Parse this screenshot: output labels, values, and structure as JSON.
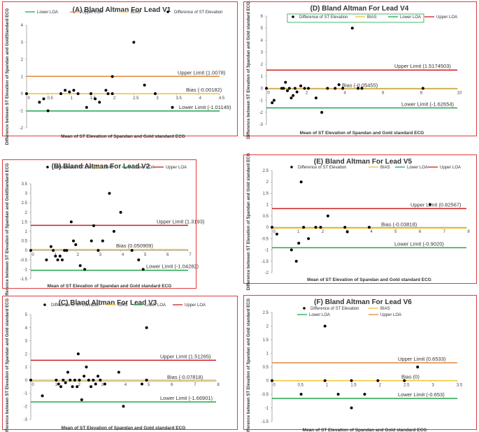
{
  "chart_data": [
    {
      "id": "v1",
      "type": "scatter",
      "title": "(A) Bland Altman For Lead V1",
      "xlabel": "Mean of ST Elevation of Spandan and Gold standard ECG",
      "ylabel": "Difference between ST Elevation of Spandan and GoldStandard ECG",
      "xlim": [
        0,
        4.5
      ],
      "xticks": [
        0,
        0.5,
        1,
        1.5,
        2,
        2.5,
        3,
        3.5,
        4,
        4.5
      ],
      "ylim": [
        -2,
        4
      ],
      "yticks": [
        -2,
        -1,
        0,
        1,
        2,
        3,
        4
      ],
      "legend": [
        {
          "label": "Lower LOA",
          "color": "#1fa64a",
          "kind": "line"
        },
        {
          "label": "Upper LOA",
          "color": "#e1883a",
          "kind": "line"
        },
        {
          "label": "BIAS",
          "color": "#f2c230",
          "kind": "line"
        },
        {
          "label": "Difference of ST Elevation",
          "color": "#000000",
          "kind": "dot"
        }
      ],
      "lines": [
        {
          "name": "Upper Limit",
          "value": 1.0078,
          "color": "#e1883a",
          "label": "Upper Limit (1.0078)"
        },
        {
          "name": "Bias",
          "value": -0.00182,
          "color": "#f2c230",
          "label": "Bias (-0.00182)"
        },
        {
          "name": "Lower Limit",
          "value": -1.01149,
          "color": "#1fa64a",
          "label": "Lower Limit (-1.01149)"
        }
      ],
      "points": {
        "x": [
          0,
          0.3,
          0.4,
          0.5,
          0.8,
          0.9,
          1.0,
          1.1,
          1.2,
          1.4,
          1.5,
          1.6,
          1.7,
          1.85,
          1.9,
          2.0,
          2.0,
          2.5,
          2.75,
          3.0,
          3.4
        ],
        "y": [
          0,
          -0.5,
          -0.3,
          -1.0,
          0,
          0.2,
          0.1,
          0.2,
          0,
          -0.8,
          0,
          -0.3,
          -0.5,
          0.2,
          0,
          0,
          1.0,
          3.0,
          0.5,
          0,
          -0.8
        ]
      }
    },
    {
      "id": "v4",
      "type": "scatter",
      "title": "(D) Bland Altman For Lead V4",
      "xlabel": "Mean of ST Elevation of Spandan and Gold standard ECG",
      "ylabel": "Difference between ST Elevation of Spandan and Gold standard ECG",
      "xlim": [
        0,
        10
      ],
      "xticks": [
        0,
        2,
        4,
        6,
        8,
        10
      ],
      "ylim": [
        -3,
        6
      ],
      "yticks": [
        -3,
        -2,
        -1,
        0,
        1,
        2,
        3,
        4,
        5,
        6
      ],
      "legend": [
        {
          "label": "Difference of ST Elevation",
          "color": "#000000",
          "kind": "dot"
        },
        {
          "label": "BIAS",
          "color": "#f2c230",
          "kind": "line"
        },
        {
          "label": "Lower LOA",
          "color": "#1fa64a",
          "kind": "line"
        },
        {
          "label": "Upper LOA",
          "color": "#cc1f1f",
          "kind": "line"
        }
      ],
      "lines": [
        {
          "name": "Upper Limit",
          "value": 1.5174503,
          "color": "#cc1f1f",
          "label": "Upper Limit (1.5174503)"
        },
        {
          "name": "Bias",
          "value": -0.05455,
          "color": "#f2c230",
          "label": "Bias (-0.05455)"
        },
        {
          "name": "Lower Limit",
          "value": -1.62654,
          "color": "#1fa64a",
          "label": "Lower Limit (-1.62654)"
        }
      ],
      "points": {
        "x": [
          0,
          0.3,
          0.4,
          0.8,
          0.9,
          1.0,
          1.1,
          1.2,
          1.3,
          1.4,
          1.5,
          1.6,
          1.8,
          2.0,
          2.2,
          2.6,
          2.9,
          3.2,
          3.6,
          3.8,
          4.0,
          4.5,
          4.8,
          5.0,
          8.2
        ],
        "y": [
          0,
          -1.2,
          -1.0,
          0,
          0,
          0.5,
          -0.2,
          0,
          -0.8,
          -0.6,
          0,
          -0.3,
          0.2,
          0,
          0,
          -0.8,
          -2.0,
          0,
          0,
          0.3,
          0,
          5.0,
          0,
          0,
          0
        ]
      }
    },
    {
      "id": "v2",
      "type": "scatter",
      "title": "(B) Bland Altman For Lead V2",
      "xlabel": "Mean of ST Elevation of Spandan and Gold standard ECG",
      "ylabel": "Difference between ST Elevation of Spandan and GoldStandard ECG",
      "xlim": [
        0,
        7
      ],
      "xticks": [
        0,
        1,
        2,
        3,
        4,
        5,
        6,
        7
      ],
      "ylim": [
        -1.5,
        3.5
      ],
      "yticks": [
        -1.5,
        -1,
        -0.5,
        0,
        0.5,
        1,
        1.5,
        2,
        2.5,
        3,
        3.5
      ],
      "legend": [
        {
          "label": "Difference of ST Elevation",
          "color": "#000000",
          "kind": "dot"
        },
        {
          "label": "BIAS",
          "color": "#f2c230",
          "kind": "line"
        },
        {
          "label": "Lower LOA",
          "color": "#1fa64a",
          "kind": "line"
        },
        {
          "label": "Upper LOA",
          "color": "#cc1f1f",
          "kind": "line"
        }
      ],
      "lines": [
        {
          "name": "Upper Limit",
          "value": 1.3193,
          "color": "#cc1f1f",
          "label": "Upper Limit (1.3193)"
        },
        {
          "name": "Bias",
          "value": 0.050909,
          "color": "#f2c230",
          "label": "Bias (0.050909)"
        },
        {
          "name": "Lower Limit",
          "value": -1.04282,
          "color": "#1fa64a",
          "label": "Lower Limit (-1.04282)"
        }
      ],
      "points": {
        "x": [
          0,
          0.7,
          0.9,
          1.0,
          1.1,
          1.2,
          1.3,
          1.4,
          1.5,
          1.6,
          1.8,
          1.9,
          2.0,
          2.2,
          2.4,
          2.7,
          2.8,
          3.0,
          3.2,
          3.5,
          3.7,
          4.0,
          4.5,
          4.8,
          5.0
        ],
        "y": [
          0,
          -0.5,
          0.2,
          0,
          -0.3,
          -0.5,
          -0.3,
          -0.5,
          0,
          0,
          1.5,
          0.5,
          0.3,
          -0.8,
          -1.0,
          0.5,
          1.3,
          0,
          0.5,
          3.0,
          1.0,
          2.0,
          0,
          -0.5,
          -1.0
        ]
      }
    },
    {
      "id": "v5",
      "type": "scatter",
      "title": "(E) Bland Altman For Lead V5",
      "xlabel": "Mean of ST Elevation of Spandan and Gold standard ECG",
      "ylabel": "Difference between ST Elevation of Spandan and Gold standard ECG",
      "xlim": [
        0,
        8
      ],
      "xticks": [
        0,
        1,
        2,
        3,
        4,
        5,
        6,
        7,
        8
      ],
      "ylim": [
        -2,
        2.5
      ],
      "yticks": [
        -2,
        -1.5,
        -1,
        -0.5,
        0,
        0.5,
        1,
        1.5,
        2,
        2.5
      ],
      "legend": [
        {
          "label": "Difference of ST Elevation",
          "color": "#000000",
          "kind": "dot"
        },
        {
          "label": "BIAS",
          "color": "#f2c230",
          "kind": "line"
        },
        {
          "label": "Lower LOA",
          "color": "#1fa64a",
          "kind": "line"
        },
        {
          "label": "Upper LOA",
          "color": "#cc1f1f",
          "kind": "line"
        }
      ],
      "lines": [
        {
          "name": "Upper Limit",
          "value": 0.82567,
          "color": "#cc1f1f",
          "label": "Upper Limit (0.82567)"
        },
        {
          "name": "Bias",
          "value": -0.03818,
          "color": "#f2c230",
          "label": "Bias (-0.03818)"
        },
        {
          "name": "Lower Limit",
          "value": -0.902,
          "color": "#1fa64a",
          "label": "Lower Limit (-0.9020)"
        }
      ],
      "points": {
        "x": [
          0,
          0.2,
          0.8,
          1.0,
          1.1,
          1.2,
          1.3,
          1.5,
          1.8,
          2.0,
          2.3,
          3.0,
          3.1,
          4.0,
          6.5
        ],
        "y": [
          0,
          -0.3,
          -1.0,
          -1.5,
          -0.7,
          2.0,
          0,
          -0.5,
          0,
          0,
          0.5,
          0,
          -0.2,
          0,
          1.0
        ]
      }
    },
    {
      "id": "v3",
      "type": "scatter",
      "title": "(C) Bland Altman For Lead V3",
      "xlabel": "Mean of ST Elevation of Spandan and Gold standard ECG",
      "ylabel": "Difference between ST Elevation of Spandan and Gold standard ECG",
      "xlim": [
        0,
        8
      ],
      "xticks": [
        0,
        1,
        2,
        3,
        4,
        5,
        6,
        7,
        8
      ],
      "ylim": [
        -3,
        5
      ],
      "yticks": [
        -3,
        -2,
        -1,
        0,
        1,
        2,
        3,
        4,
        5
      ],
      "legend": [
        {
          "label": "Difference of ST Elevation",
          "color": "#000000",
          "kind": "dot"
        },
        {
          "label": "BIAS",
          "color": "#f2c230",
          "kind": "line"
        },
        {
          "label": "Lower LOA",
          "color": "#1fa64a",
          "kind": "line"
        },
        {
          "label": "Upper LOA",
          "color": "#cc1f1f",
          "kind": "line"
        }
      ],
      "lines": [
        {
          "name": "Upper Limit",
          "value": 1.51265,
          "color": "#cc1f1f",
          "label": "Upper Limit (1.51265)"
        },
        {
          "name": "Bias",
          "value": -0.07818,
          "color": "#f2c230",
          "label": "Bias (-0.07818)"
        },
        {
          "name": "Lower Limit",
          "value": -1.66901,
          "color": "#1fa64a",
          "label": "Lower Limit (-1.66901)"
        }
      ],
      "points": {
        "x": [
          0,
          0.5,
          1.1,
          1.2,
          1.3,
          1.4,
          1.5,
          1.6,
          1.7,
          1.8,
          1.9,
          2.0,
          2.05,
          2.1,
          2.2,
          2.3,
          2.4,
          2.5,
          2.6,
          2.7,
          2.8,
          2.9,
          3.0,
          3.2,
          3.8,
          4.0,
          4.8,
          5.0,
          5.0
        ],
        "y": [
          0,
          -1.2,
          0,
          -0.3,
          -0.5,
          0,
          -0.2,
          0.6,
          0,
          -0.5,
          0,
          -0.5,
          2.0,
          0,
          -1.5,
          0.3,
          1.0,
          0,
          -0.5,
          0,
          -0.3,
          0.3,
          0,
          -0.3,
          0.6,
          -2.0,
          -0.3,
          0,
          4.0
        ]
      }
    },
    {
      "id": "v6",
      "type": "scatter",
      "title": "(F) Bland Altman For Lead V6",
      "xlabel": "Mean of ST Elevation of Spandan and Gold standard ECG",
      "ylabel": "Difference between ST Elevation of Spandan and Gold standard ECG",
      "xlim": [
        0,
        3.5
      ],
      "xticks": [
        0,
        0.5,
        1,
        1.5,
        2,
        2.5,
        3,
        3.5
      ],
      "ylim": [
        -1.5,
        2.5
      ],
      "yticks": [
        -1.5,
        -1,
        -0.5,
        0,
        0.5,
        1,
        1.5,
        2,
        2.5
      ],
      "legend": [
        {
          "label": "Difference of ST Elevation",
          "color": "#000000",
          "kind": "dot"
        },
        {
          "label": "BIAS",
          "color": "#f2c230",
          "kind": "line"
        },
        {
          "label": "Lower LOA",
          "color": "#1fa64a",
          "kind": "line"
        },
        {
          "label": "Upper LOA",
          "color": "#e1883a",
          "kind": "line"
        }
      ],
      "lines": [
        {
          "name": "Upper Limit",
          "value": 0.6533,
          "color": "#e1883a",
          "label": "Upper Limit (0.6533)"
        },
        {
          "name": "Bias",
          "value": 0,
          "color": "#f2c230",
          "label": "Bias (0)"
        },
        {
          "name": "Lower Limit",
          "value": -0.653,
          "color": "#1fa64a",
          "label": "Lower Limit (-0.653)"
        }
      ],
      "points": {
        "x": [
          0,
          0.55,
          1.0,
          1.0,
          1.25,
          1.5,
          1.5,
          1.75,
          2.0,
          2.5,
          2.75
        ],
        "y": [
          0,
          -0.5,
          0,
          2.0,
          -0.5,
          0,
          -1.0,
          -0.5,
          0,
          0,
          0.5
        ]
      }
    }
  ]
}
